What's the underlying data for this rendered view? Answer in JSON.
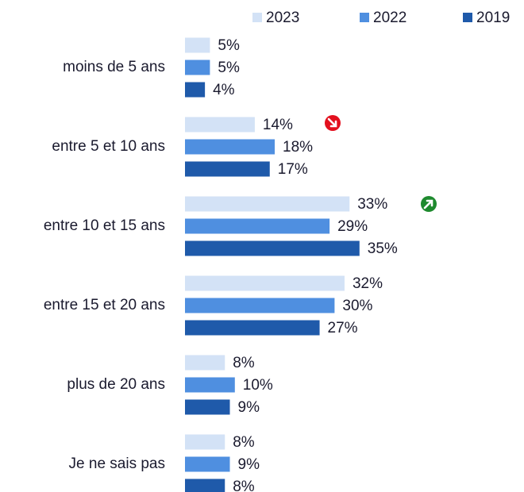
{
  "chart_data": {
    "type": "bar",
    "orientation": "horizontal",
    "categories": [
      "moins de 5 ans",
      "entre 5 et 10 ans",
      "entre 10 et 15 ans",
      "entre 15 et 20 ans",
      "plus de 20 ans",
      "Je ne sais pas"
    ],
    "series": [
      {
        "name": "2023",
        "color": "#d3e2f6",
        "values": [
          5,
          14,
          33,
          32,
          8,
          8
        ],
        "value_labels": [
          "5%",
          "14%",
          "33%",
          "32%",
          "8%",
          "8%"
        ]
      },
      {
        "name": "2022",
        "color": "#4f8fe0",
        "values": [
          5,
          18,
          29,
          30,
          10,
          9
        ],
        "value_labels": [
          "5%",
          "18%",
          "29%",
          "30%",
          "10%",
          "9%"
        ]
      },
      {
        "name": "2019",
        "color": "#1f5aaa",
        "values": [
          4,
          17,
          35,
          27,
          9,
          8
        ],
        "value_labels": [
          "4%",
          "17%",
          "35%",
          "27%",
          "9%",
          "8%"
        ]
      }
    ],
    "legend": "top-right"
  }
}
